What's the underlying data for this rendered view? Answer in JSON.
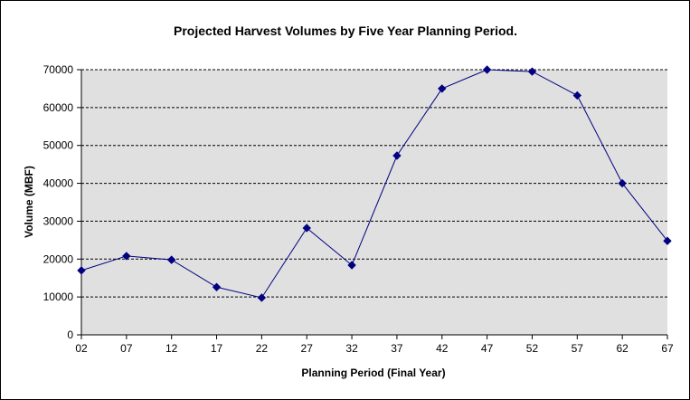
{
  "chart_data": {
    "type": "line",
    "title": "Projected Harvest Volumes by Five Year Planning Period.",
    "xlabel": "Planning Period (Final Year)",
    "ylabel": "Volume (MBF)",
    "categories": [
      "02",
      "07",
      "12",
      "17",
      "22",
      "27",
      "32",
      "37",
      "42",
      "47",
      "52",
      "57",
      "62",
      "67"
    ],
    "series": [
      {
        "values": [
          17000,
          20800,
          19800,
          12600,
          9800,
          28200,
          18400,
          47300,
          65000,
          70000,
          69500,
          63200,
          40000,
          24800
        ],
        "color": "#000080"
      }
    ],
    "ylim": [
      0,
      70000
    ],
    "yticks": [
      0,
      10000,
      20000,
      30000,
      40000,
      50000,
      60000,
      70000
    ],
    "ytick_labels": [
      "0",
      "10000",
      "20000",
      "30000",
      "40000",
      "50000",
      "60000",
      "70000"
    ],
    "grid": true,
    "plot_background": "#e0e0e0",
    "legend": "none"
  }
}
